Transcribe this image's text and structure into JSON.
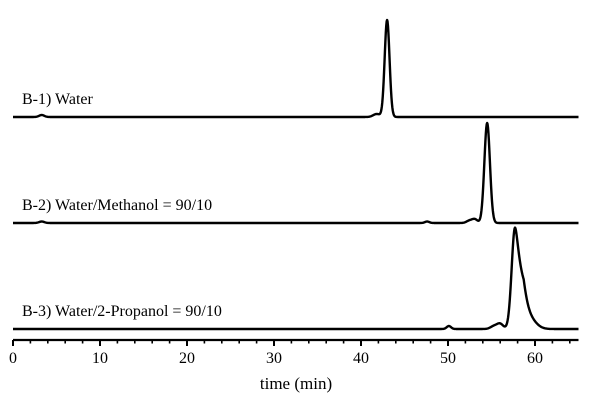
{
  "chart_data": {
    "type": "line",
    "xlabel": "time (min)",
    "ylabel": "",
    "xlim": [
      0,
      65
    ],
    "xticks": [
      0,
      10,
      20,
      30,
      40,
      50,
      60
    ],
    "minor_tick_step": 2,
    "grid": false,
    "y_axis_shown": false,
    "stacked_offset_traces": true,
    "line_color": "#000000",
    "series": [
      {
        "label": "B-1) Water",
        "peaks": [
          {
            "time": 3.3,
            "height": 2,
            "width": 0.3
          },
          {
            "time": 41.8,
            "height": 3,
            "width": 0.4
          },
          {
            "time": 43.0,
            "height": 97,
            "width": 0.28
          }
        ]
      },
      {
        "label": "B-2) Water/Methanol = 90/10",
        "peaks": [
          {
            "time": 3.3,
            "height": 1.5,
            "width": 0.3
          },
          {
            "time": 47.6,
            "height": 1.5,
            "width": 0.25
          },
          {
            "time": 52.5,
            "height": 2.5,
            "width": 0.35
          },
          {
            "time": 53.1,
            "height": 3.5,
            "width": 0.3
          },
          {
            "time": 54.5,
            "height": 100,
            "width": 0.32
          }
        ]
      },
      {
        "label": "B-3) Water/2-Propanol = 90/10",
        "peaks": [
          {
            "time": 50.1,
            "height": 3,
            "width": 0.25
          },
          {
            "time": 55.3,
            "height": 3,
            "width": 0.4
          },
          {
            "time": 56.0,
            "height": 5,
            "width": 0.35
          },
          {
            "time": 57.7,
            "height": 100,
            "width": 0.38,
            "tailing": 1.0
          },
          {
            "time": 59.3,
            "height": 10,
            "width": 0.8
          }
        ]
      }
    ]
  }
}
